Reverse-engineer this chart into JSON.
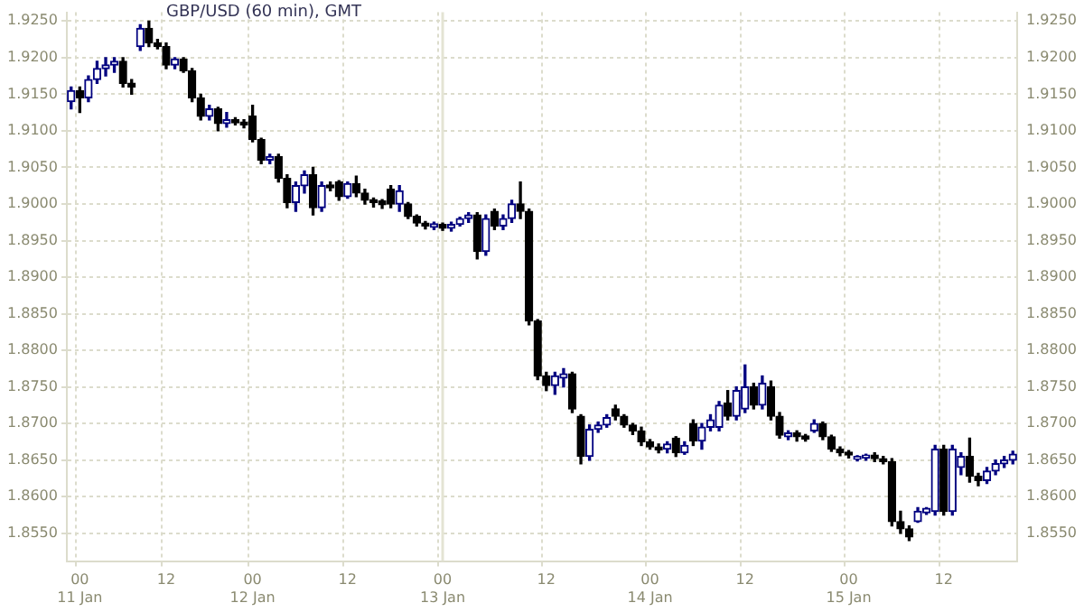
{
  "chart_data": {
    "type": "candlestick",
    "title": "GBP/USD (60 min), GMT",
    "categories": [
      null,
      "00\n11 Jan",
      null,
      null,
      null,
      null,
      null,
      null,
      null,
      null,
      null,
      "12",
      null,
      null,
      null,
      null,
      null,
      null,
      null,
      null,
      null,
      "00\n12 Jan",
      null,
      null,
      null,
      null,
      null,
      null,
      null,
      null,
      null,
      null,
      "12",
      null,
      null,
      null,
      null,
      null,
      null,
      null,
      null,
      null,
      null,
      "00\n13 Jan",
      null,
      null,
      null,
      null,
      null,
      null,
      null,
      null,
      null,
      null,
      null,
      "12",
      null,
      null,
      null,
      null,
      null,
      null,
      null,
      null,
      null,
      null,
      null,
      "00\n14 Jan",
      null,
      null,
      null,
      null,
      null,
      null,
      null,
      null,
      null,
      null,
      "12",
      null,
      null,
      null,
      null,
      null,
      null,
      null,
      null,
      null,
      null,
      null,
      "00\n15 Jan",
      null,
      null,
      null,
      null,
      null,
      null,
      null,
      null,
      null,
      null,
      "12",
      null,
      null,
      null,
      null,
      null,
      null,
      null,
      null
    ],
    "ohlc": [
      [
        1.914,
        1.916,
        1.913,
        1.9155
      ],
      [
        1.9155,
        1.916,
        1.9125,
        1.9145
      ],
      [
        1.9145,
        1.9175,
        1.914,
        1.917
      ],
      [
        1.917,
        1.9195,
        1.9165,
        1.9185
      ],
      [
        1.9185,
        1.92,
        1.9175,
        1.919
      ],
      [
        1.919,
        1.92,
        1.918,
        1.9195
      ],
      [
        1.9195,
        1.92,
        1.916,
        1.9165
      ],
      [
        1.9165,
        1.917,
        1.915,
        1.916
      ],
      [
        1.9215,
        1.9245,
        1.921,
        1.924
      ],
      [
        1.924,
        1.925,
        1.9215,
        1.922
      ],
      [
        1.922,
        1.9225,
        1.9212,
        1.9215
      ],
      [
        1.9215,
        1.922,
        1.9185,
        1.919
      ],
      [
        1.919,
        1.92,
        1.9185,
        1.9198
      ],
      [
        1.9198,
        1.92,
        1.918,
        1.9182
      ],
      [
        1.9182,
        1.9185,
        1.914,
        1.9145
      ],
      [
        1.9145,
        1.915,
        1.9115,
        1.912
      ],
      [
        1.912,
        1.9135,
        1.9115,
        1.913
      ],
      [
        1.913,
        1.9132,
        1.91,
        1.911
      ],
      [
        1.911,
        1.9125,
        1.9105,
        1.9115
      ],
      [
        1.9115,
        1.9118,
        1.9108,
        1.9111
      ],
      [
        1.9112,
        1.9115,
        1.9104,
        1.9108
      ],
      [
        1.912,
        1.9135,
        1.9085,
        1.9088
      ],
      [
        1.9088,
        1.909,
        1.9055,
        1.906
      ],
      [
        1.906,
        1.9068,
        1.9055,
        1.9065
      ],
      [
        1.9065,
        1.9068,
        1.903,
        1.9035
      ],
      [
        1.9035,
        1.904,
        1.8995,
        1.9002
      ],
      [
        1.9002,
        1.903,
        1.899,
        1.9025
      ],
      [
        1.9025,
        1.9045,
        1.9015,
        1.904
      ],
      [
        1.904,
        1.905,
        1.8985,
        1.8995
      ],
      [
        1.8995,
        1.903,
        1.899,
        1.9025
      ],
      [
        1.9026,
        1.903,
        1.9018,
        1.9022
      ],
      [
        1.903,
        1.9032,
        1.9005,
        1.901
      ],
      [
        1.901,
        1.903,
        1.9008,
        1.9028
      ],
      [
        1.9028,
        1.9038,
        1.901,
        1.9015
      ],
      [
        1.9015,
        1.902,
        1.9,
        1.9005
      ],
      [
        1.9006,
        1.9008,
        1.8996,
        1.9002
      ],
      [
        1.9004,
        1.9006,
        1.8994,
        1.8999
      ],
      [
        1.902,
        1.9025,
        1.8995,
        1.9
      ],
      [
        1.9,
        1.9025,
        1.899,
        1.9018
      ],
      [
        1.9,
        1.9002,
        1.898,
        1.8983
      ],
      [
        1.8983,
        1.8985,
        1.897,
        1.8974
      ],
      [
        1.8974,
        1.8976,
        1.8966,
        1.897
      ],
      [
        1.8968,
        1.8975,
        1.8965,
        1.8973
      ],
      [
        1.8972,
        1.8974,
        1.8964,
        1.8967
      ],
      [
        1.8967,
        1.8975,
        1.8963,
        1.8972
      ],
      [
        1.8972,
        1.8982,
        1.897,
        1.898
      ],
      [
        1.898,
        1.8988,
        1.8975,
        1.8985
      ],
      [
        1.8985,
        1.8988,
        1.8925,
        1.8935
      ],
      [
        1.8935,
        1.8985,
        1.893,
        1.898
      ],
      [
        1.899,
        1.8993,
        1.8965,
        1.897
      ],
      [
        1.897,
        1.8985,
        1.8965,
        1.898
      ],
      [
        1.898,
        1.9005,
        1.8975,
        1.9
      ],
      [
        1.9,
        1.903,
        1.898,
        1.899
      ],
      [
        1.899,
        1.8993,
        1.8835,
        1.884
      ],
      [
        1.884,
        1.8842,
        1.876,
        1.8765
      ],
      [
        1.8765,
        1.877,
        1.8745,
        1.8752
      ],
      [
        1.8752,
        1.877,
        1.874,
        1.8765
      ],
      [
        1.8762,
        1.8775,
        1.875,
        1.8768
      ],
      [
        1.8768,
        1.877,
        1.8715,
        1.872
      ],
      [
        1.871,
        1.8712,
        1.8645,
        1.8655
      ],
      [
        1.8655,
        1.8698,
        1.865,
        1.8692
      ],
      [
        1.8692,
        1.8702,
        1.8688,
        1.8698
      ],
      [
        1.8698,
        1.8712,
        1.8695,
        1.8708
      ],
      [
        1.872,
        1.8725,
        1.8705,
        1.871
      ],
      [
        1.871,
        1.8712,
        1.8695,
        1.8698
      ],
      [
        1.8698,
        1.87,
        1.8685,
        1.869
      ],
      [
        1.869,
        1.8695,
        1.867,
        1.8675
      ],
      [
        1.8675,
        1.8678,
        1.8665,
        1.8668
      ],
      [
        1.8668,
        1.8672,
        1.866,
        1.8664
      ],
      [
        1.8665,
        1.8675,
        1.866,
        1.8672
      ],
      [
        1.868,
        1.8682,
        1.8655,
        1.866
      ],
      [
        1.866,
        1.8675,
        1.8658,
        1.867
      ],
      [
        1.87,
        1.8705,
        1.867,
        1.8676
      ],
      [
        1.8676,
        1.87,
        1.8665,
        1.8695
      ],
      [
        1.8695,
        1.8712,
        1.869,
        1.8705
      ],
      [
        1.8695,
        1.873,
        1.869,
        1.8725
      ],
      [
        1.8728,
        1.8745,
        1.8705,
        1.871
      ],
      [
        1.871,
        1.875,
        1.8705,
        1.8745
      ],
      [
        1.872,
        1.878,
        1.8715,
        1.875
      ],
      [
        1.875,
        1.8755,
        1.872,
        1.8725
      ],
      [
        1.8725,
        1.8765,
        1.872,
        1.8755
      ],
      [
        1.875,
        1.8758,
        1.8705,
        1.871
      ],
      [
        1.871,
        1.8715,
        1.868,
        1.8684
      ],
      [
        1.8682,
        1.869,
        1.8678,
        1.8687
      ],
      [
        1.8687,
        1.869,
        1.8676,
        1.8682
      ],
      [
        1.8683,
        1.8685,
        1.8676,
        1.8679
      ],
      [
        1.869,
        1.8705,
        1.8688,
        1.87
      ],
      [
        1.87,
        1.8702,
        1.8678,
        1.8682
      ],
      [
        1.8682,
        1.8684,
        1.8662,
        1.8665
      ],
      [
        1.8665,
        1.8668,
        1.8656,
        1.866
      ],
      [
        1.8661,
        1.8663,
        1.8653,
        1.8657
      ],
      [
        1.8651,
        1.8656,
        1.8649,
        1.8655
      ],
      [
        1.8653,
        1.8658,
        1.865,
        1.8657
      ],
      [
        1.8657,
        1.866,
        1.8648,
        1.8652
      ],
      [
        1.8652,
        1.8655,
        1.8645,
        1.8648
      ],
      [
        1.8648,
        1.8652,
        1.856,
        1.8566
      ],
      [
        1.8566,
        1.858,
        1.855,
        1.8556
      ],
      [
        1.8556,
        1.856,
        1.854,
        1.8545
      ],
      [
        1.8566,
        1.8585,
        1.8565,
        1.858
      ],
      [
        1.8578,
        1.8585,
        1.8576,
        1.8584
      ],
      [
        1.858,
        1.867,
        1.8575,
        1.8665
      ],
      [
        1.8665,
        1.867,
        1.8575,
        1.858
      ],
      [
        1.858,
        1.867,
        1.8575,
        1.8665
      ],
      [
        1.864,
        1.866,
        1.863,
        1.8655
      ],
      [
        1.8655,
        1.868,
        1.862,
        1.8628
      ],
      [
        1.8628,
        1.8632,
        1.8615,
        1.8622
      ],
      [
        1.8622,
        1.864,
        1.8618,
        1.8635
      ],
      [
        1.8635,
        1.865,
        1.863,
        1.8645
      ],
      [
        1.8645,
        1.8655,
        1.864,
        1.865
      ],
      [
        1.865,
        1.8662,
        1.8645,
        1.8658
      ]
    ],
    "colors": [
      "#000080",
      "#000000",
      "#000080",
      "#000080",
      "#000080",
      "#000080",
      "#000000",
      "#000000",
      "#000080",
      "#000000",
      "#000000",
      "#000000",
      "#000080",
      "#000000",
      "#000000",
      "#000000",
      "#000080",
      "#000000",
      "#000080",
      "#000000",
      "#000000",
      "#000000",
      "#000000",
      "#000080",
      "#000000",
      "#000000",
      "#000080",
      "#000080",
      "#000000",
      "#000080",
      "#000000",
      "#000000",
      "#000080",
      "#000000",
      "#000000",
      "#000000",
      "#000000",
      "#000000",
      "#000080",
      "#000000",
      "#000000",
      "#000000",
      "#000080",
      "#000000",
      "#000080",
      "#000080",
      "#000080",
      "#000000",
      "#000080",
      "#000000",
      "#000080",
      "#000080",
      "#000000",
      "#000000",
      "#000000",
      "#000000",
      "#000080",
      "#000080",
      "#000000",
      "#000000",
      "#000080",
      "#000080",
      "#000080",
      "#000000",
      "#000000",
      "#000000",
      "#000000",
      "#000000",
      "#000000",
      "#000080",
      "#000000",
      "#000080",
      "#000000",
      "#000080",
      "#000080",
      "#000080",
      "#000000",
      "#000080",
      "#000080",
      "#000000",
      "#000080",
      "#000000",
      "#000000",
      "#000080",
      "#000000",
      "#000000",
      "#000080",
      "#000000",
      "#000000",
      "#000000",
      "#000000",
      "#000080",
      "#000080",
      "#000000",
      "#000000",
      "#000000",
      "#000000",
      "#000000",
      "#000080",
      "#000080",
      "#000080",
      "#000000",
      "#000080",
      "#000080",
      "#000000",
      "#000000",
      "#000080",
      "#000080",
      "#000080",
      "#000080"
    ],
    "ylim": [
      1.8512,
      1.9262
    ],
    "yticks": [
      {
        "value": 1.855,
        "label": "1.8550"
      },
      {
        "value": 1.86,
        "label": "1.8600"
      },
      {
        "value": 1.865,
        "label": "1.8650"
      },
      {
        "value": 1.87,
        "label": "1.8700"
      },
      {
        "value": 1.875,
        "label": "1.8750"
      },
      {
        "value": 1.88,
        "label": "1.8800"
      },
      {
        "value": 1.885,
        "label": "1.8850"
      },
      {
        "value": 1.89,
        "label": "1.8900"
      },
      {
        "value": 1.895,
        "label": "1.8950"
      },
      {
        "value": 1.9,
        "label": "1.9000"
      },
      {
        "value": 1.905,
        "label": "1.9050"
      },
      {
        "value": 1.91,
        "label": "1.9100"
      },
      {
        "value": 1.915,
        "label": "1.9150"
      },
      {
        "value": 1.92,
        "label": "1.9200"
      },
      {
        "value": 1.925,
        "label": "1.9250"
      }
    ],
    "ref_lines": [
      {
        "axis": "x",
        "value": "00\n13 Jan",
        "color": "#e4e4d4"
      }
    ],
    "grid": true,
    "legend": false
  }
}
